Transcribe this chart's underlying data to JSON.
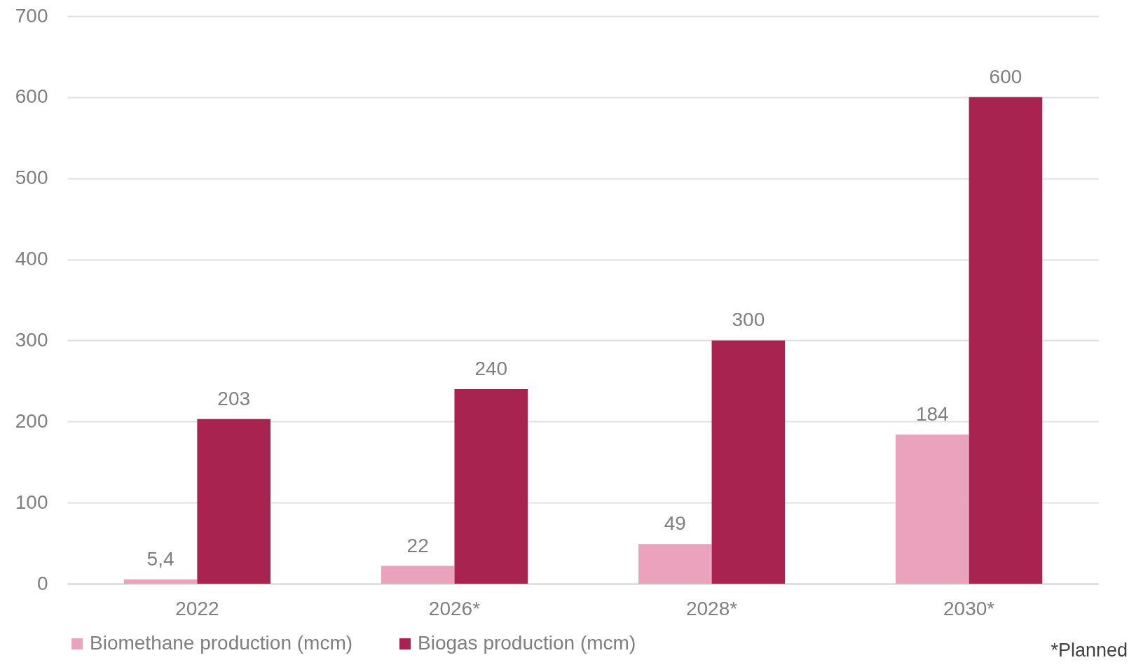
{
  "chart_data": {
    "type": "bar",
    "categories": [
      "2022",
      "2026*",
      "2028*",
      "2030*"
    ],
    "series": [
      {
        "name": "Biomethane production (mcm)",
        "color": "#eba3bd",
        "values": [
          5.4,
          22,
          49,
          184
        ],
        "value_labels": [
          "5,4",
          "22",
          "49",
          "184"
        ]
      },
      {
        "name": "Biogas production (mcm)",
        "color": "#a82350",
        "values": [
          203,
          240,
          300,
          600
        ],
        "value_labels": [
          "203",
          "240",
          "300",
          "600"
        ]
      }
    ],
    "ylim": [
      0,
      700
    ],
    "yticks": [
      0,
      100,
      200,
      300,
      400,
      500,
      600,
      700
    ],
    "grid": "y",
    "legend": "bottom",
    "annotations": [
      "*Planned"
    ]
  }
}
